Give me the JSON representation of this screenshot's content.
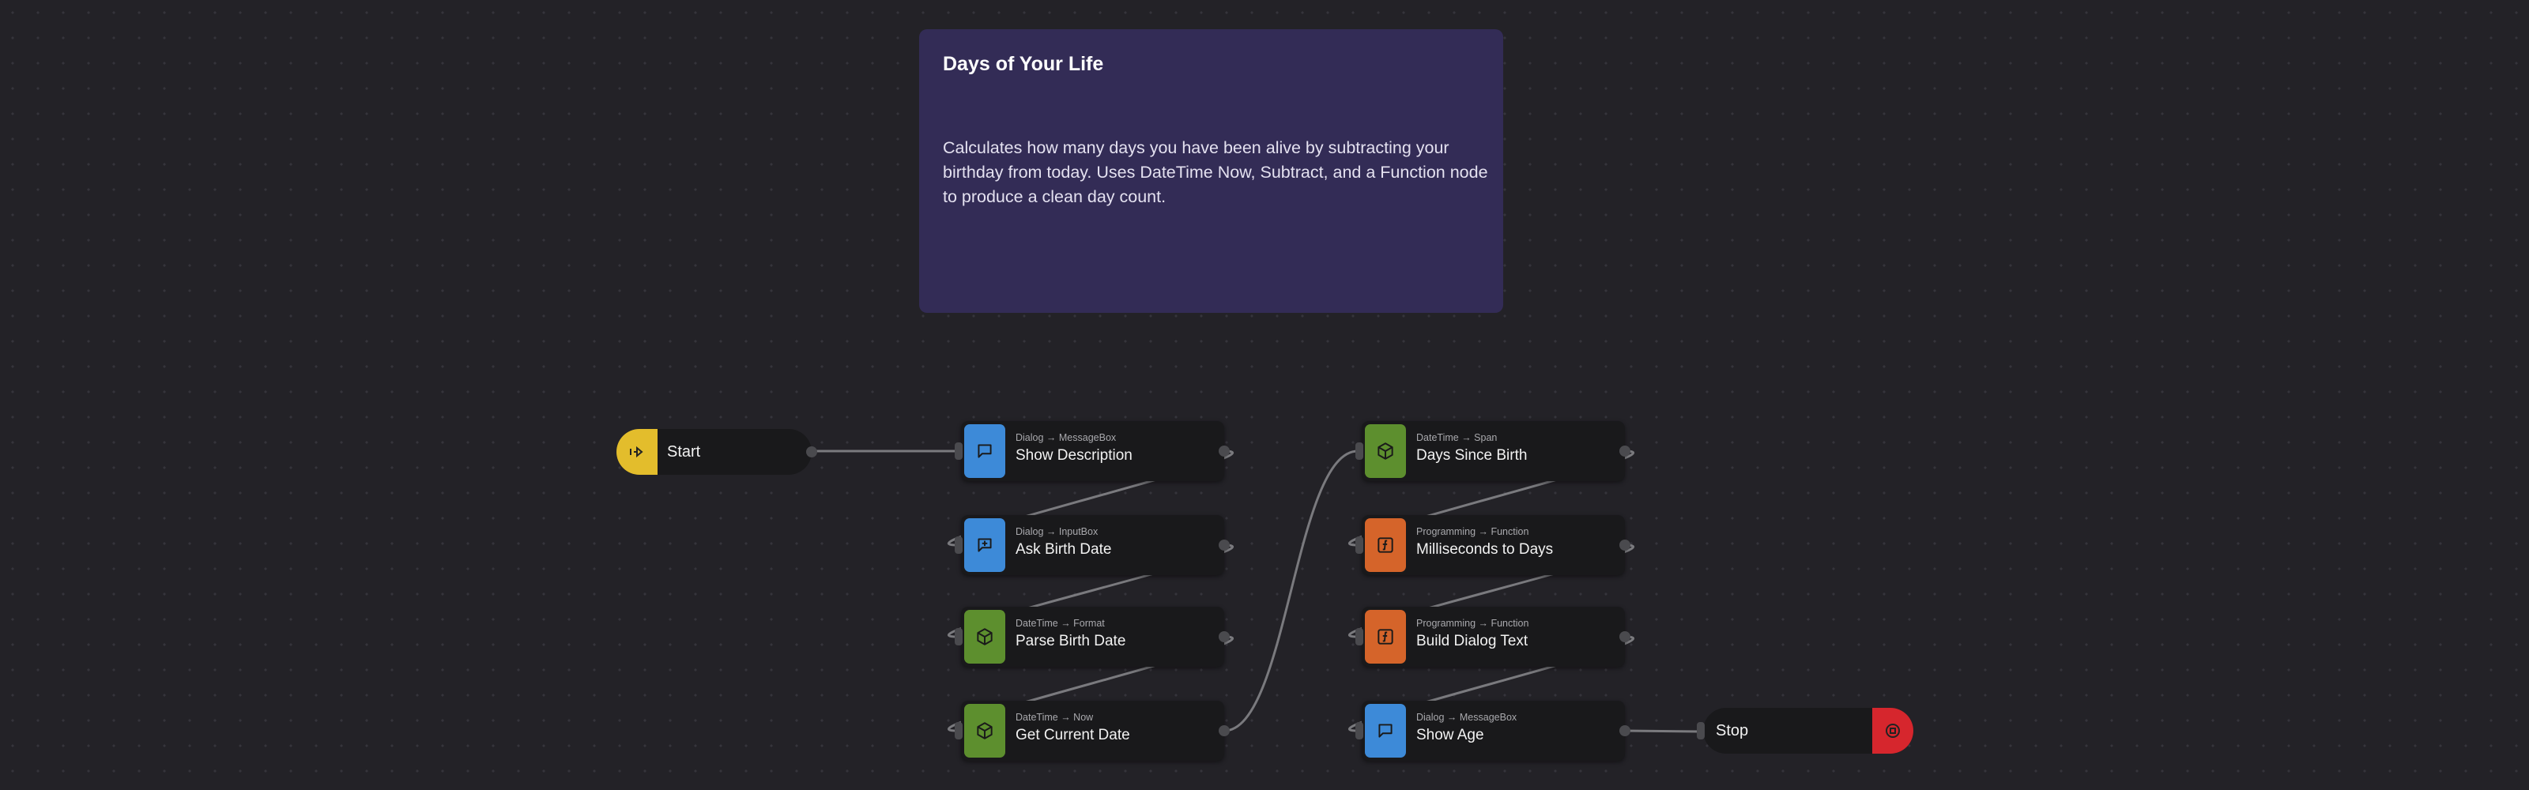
{
  "note": {
    "title": "Days of Your Life",
    "text": "Calculates how many days you have been alive by subtracting your birthday from today. Uses DateTime Now, Subtract, and a Function node to produce a clean day count."
  },
  "start": {
    "label": "Start"
  },
  "stop": {
    "label": "Stop"
  },
  "nodes": [
    {
      "category": "Dialog → MessageBox",
      "label": "Show Description",
      "color": "#3d8ad8"
    },
    {
      "category": "Dialog → InputBox",
      "label": "Ask Birth Date",
      "color": "#3d8ad8"
    },
    {
      "category": "DateTime → Format",
      "label": "Parse Birth Date",
      "color": "#5d8f2e"
    },
    {
      "category": "DateTime → Now",
      "label": "Get Current Date",
      "color": "#5d8f2e"
    },
    {
      "category": "DateTime → Span",
      "label": "Days Since Birth",
      "color": "#5d8f2e"
    },
    {
      "category": "Programming → Function",
      "label": "Milliseconds to Days",
      "color": "#d5642a"
    },
    {
      "category": "Programming → Function",
      "label": "Build Dialog Text",
      "color": "#d5642a"
    },
    {
      "category": "Dialog → MessageBox",
      "label": "Show Age",
      "color": "#3d8ad8"
    }
  ]
}
